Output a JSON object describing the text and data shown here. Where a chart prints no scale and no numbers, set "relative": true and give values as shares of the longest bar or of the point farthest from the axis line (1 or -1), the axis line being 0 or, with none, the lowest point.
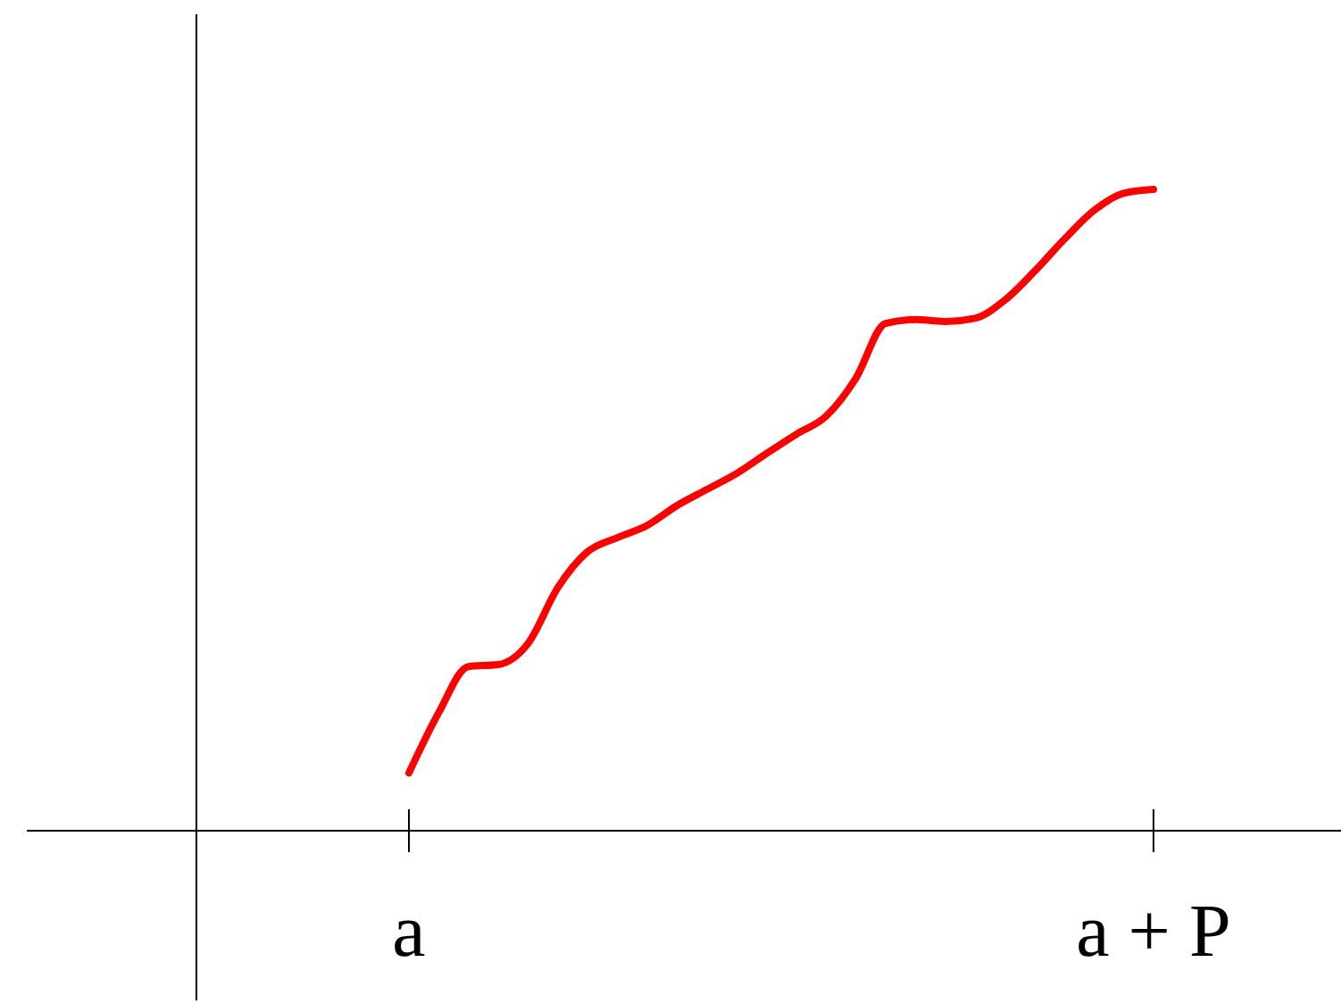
{
  "chart_data": {
    "type": "line",
    "relative": true,
    "categories": [
      "a",
      null,
      null,
      null,
      null,
      null,
      null,
      null,
      null,
      null,
      null,
      null,
      null,
      null,
      null,
      null,
      null,
      null,
      null,
      null,
      null,
      null,
      null,
      null,
      null,
      "a + P"
    ],
    "series": [
      {
        "color": "#ff0000",
        "values": [
          0.09,
          0.184,
          0.256,
          0.259,
          0.292,
          0.379,
          0.435,
          0.457,
          0.476,
          0.507,
          0.532,
          0.557,
          0.588,
          0.618,
          0.646,
          0.705,
          0.791,
          0.797,
          0.794,
          0.799,
          0.827,
          0.872,
          0.922,
          0.967,
          0.994,
          1.0
        ]
      }
    ],
    "grid": false,
    "marker": "none",
    "line_style": "solid"
  }
}
